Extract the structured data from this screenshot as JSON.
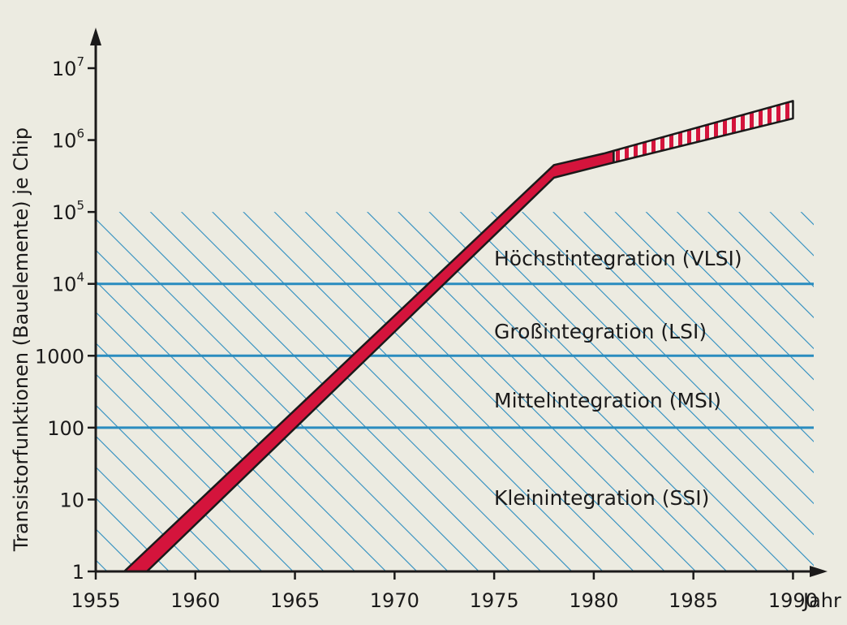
{
  "chart_data": {
    "type": "line",
    "title": "",
    "xlabel": "Jahr",
    "ylabel": "Transistorfunktionen (Bauelemente) je Chip",
    "y_scale": "log",
    "xlim": [
      1955,
      1991
    ],
    "ylim": [
      1,
      10000000
    ],
    "x_ticks": [
      "1955",
      "1960",
      "1965",
      "1970",
      "1975",
      "1980",
      "1985",
      "1990"
    ],
    "y_ticks": [
      {
        "base": "1",
        "exp": ""
      },
      {
        "base": "10",
        "exp": ""
      },
      {
        "base": "100",
        "exp": ""
      },
      {
        "base": "1000",
        "exp": ""
      },
      {
        "base": "10",
        "exp": "4"
      },
      {
        "base": "10",
        "exp": "5"
      },
      {
        "base": "10",
        "exp": "6"
      },
      {
        "base": "10",
        "exp": "7"
      }
    ],
    "series": [
      {
        "x": [
          1957,
          1978,
          1980.5,
          1990
        ],
        "y_upper": [
          1,
          450000,
          650000,
          3500000
        ],
        "y_lower": [
          1,
          300000,
          450000,
          2000000
        ],
        "projection_from_x": 1981,
        "color": "#d4143c"
      }
    ],
    "regions": [
      {
        "label": "Kleinintegration (SSI)",
        "y_from": 1,
        "y_to": 100
      },
      {
        "label": "Mittelintegration (MSI)",
        "y_from": 100,
        "y_to": 1000
      },
      {
        "label": "Großintegration (LSI)",
        "y_from": 1000,
        "y_to": 10000
      },
      {
        "label": "Höchstintegration (VLSI)",
        "y_from": 10000,
        "y_to": 100000
      }
    ],
    "region_color": "#2a8cbf",
    "grid": false
  }
}
